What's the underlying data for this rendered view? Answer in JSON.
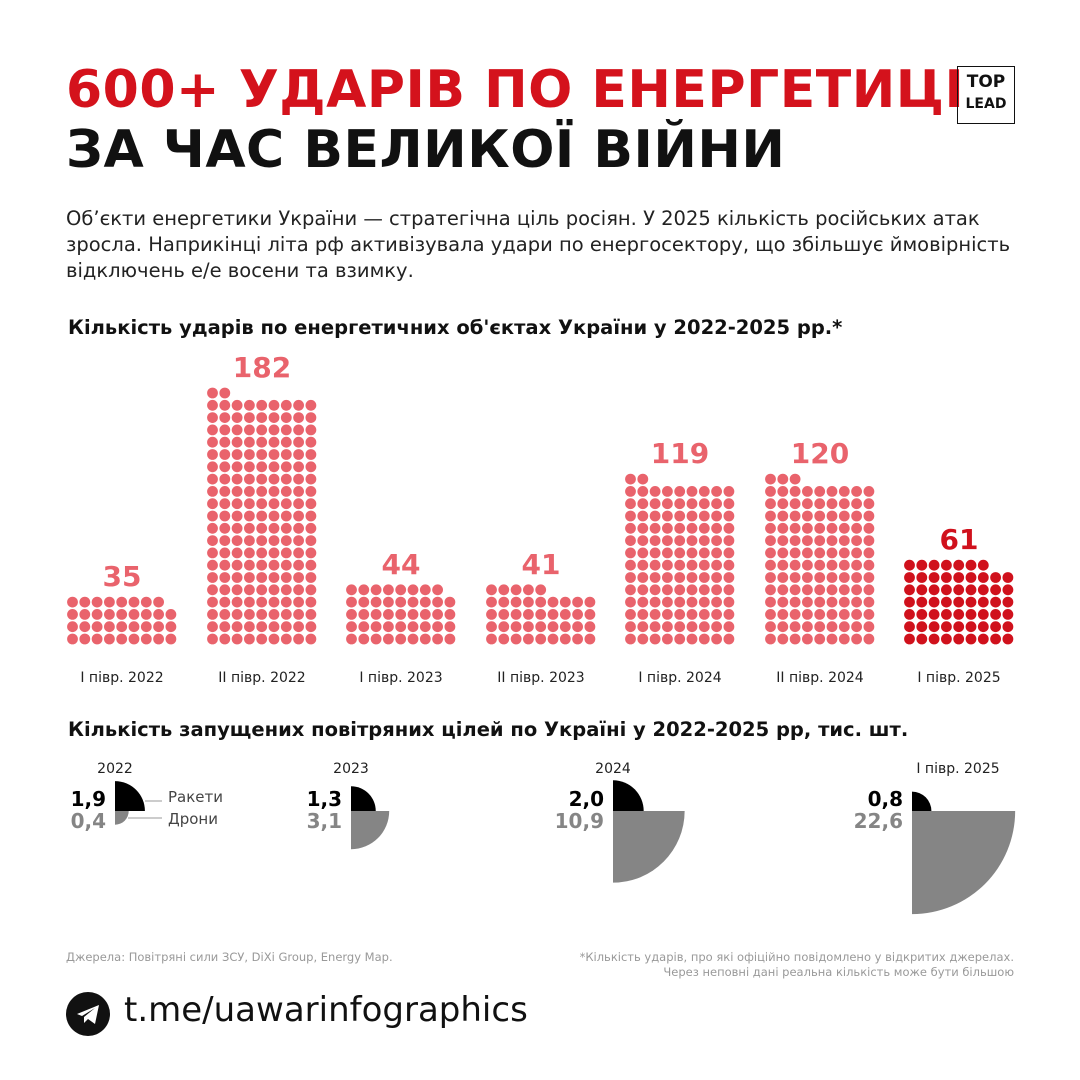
{
  "title_line1": "600+ УДАРІВ ПО ЕНЕРГЕТИЦІ",
  "title_line2": "ЗА ЧАС ВЕЛИКОЇ ВІЙНИ",
  "logo": {
    "line1": "TOP",
    "line2": "LEAD"
  },
  "intro": "Об’єкти енергетики України — стратегічна ціль росіян. У 2025 кількість російських атак зросла. Наприкінці літа рф активізувала удари по енергосектору, що збільшує ймовірність відключень е/е восени та взимку.",
  "chart_data": [
    {
      "type": "bar",
      "style": "dot-matrix",
      "title": "Кількість ударів по енергетичних об'єктах України у 2022-2025 рр.*",
      "categories": [
        "I півр. 2022",
        "II півр. 2022",
        "I півр. 2023",
        "II півр. 2023",
        "I півр. 2024",
        "II півр. 2024",
        "I півр.  2025"
      ],
      "values": [
        35,
        182,
        44,
        41,
        119,
        120,
        61
      ],
      "colors": {
        "default": "#e9636c",
        "highlight": "#d0111c"
      },
      "highlight_index": 6
    },
    {
      "type": "pie",
      "style": "quarter-circles-area-proportional",
      "title": "Кількість запущених повітряних цілей по Україні у 2022-2025 рр, тис. шт.",
      "categories": [
        "2022",
        "2023",
        "2024",
        "I півр.  2025"
      ],
      "series": [
        {
          "name": "Ракети",
          "values": [
            "1,9",
            "1,3",
            "2,0",
            "0,8"
          ],
          "color": "#000000"
        },
        {
          "name": "Дрони",
          "values": [
            "0,4",
            "3,1",
            "10,9",
            "22,6"
          ],
          "color": "#858585"
        }
      ]
    }
  ],
  "sources": "Джерела: Повітряні сили ЗСУ, DiXi Group, Energy Map.",
  "footnote1": "*Кількість ударів, про які офіційно повідомлено у відкритих джерелах.",
  "footnote2": "Через неповні дані реальна кількість може бути більшою",
  "link": "t.me/uawarinfographics"
}
